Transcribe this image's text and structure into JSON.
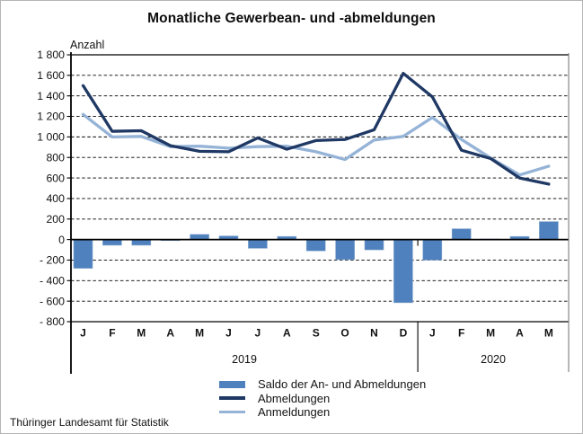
{
  "title": "Monatliche Gewerbean- und -abmeldungen",
  "y_axis_unit": "Anzahl",
  "footer": "Thüringer Landesamt für Statistik",
  "colors": {
    "bar_fill": "#4E81BD",
    "bar_edge": "#86A8D0",
    "line_dark": "#1F3864",
    "line_light": "#95B3D7",
    "axis": "#000000",
    "frame_right": "#7f7f7f",
    "text": "#111111"
  },
  "legend": [
    {
      "swatch": "bar-swatch",
      "label": "Saldo der An- und Abmeldungen"
    },
    {
      "swatch": "dark-line-swatch",
      "label": "Abmeldungen"
    },
    {
      "swatch": "light-line-swatch",
      "label": "Anmeldungen"
    }
  ],
  "chart_data": {
    "type": "bar+line combo",
    "title": "Monatliche Gewerbean- und -abmeldungen",
    "ylabel": "Anzahl",
    "ylim": [
      -800,
      1800
    ],
    "ytick_step": 200,
    "grid": "dashed horizontal",
    "legend_position": "bottom",
    "y_tick_labels": [
      "1 800",
      "1 600",
      "1 400",
      "1 200",
      "1 000",
      "800",
      "600",
      "400",
      "200",
      "0",
      "- 200",
      "- 400",
      "- 600",
      "- 800"
    ],
    "categories": [
      "J",
      "F",
      "M",
      "A",
      "M",
      "J",
      "J",
      "A",
      "S",
      "O",
      "N",
      "D",
      "J",
      "F",
      "M",
      "A",
      "M"
    ],
    "year_groups": [
      {
        "label": "2019",
        "from_index": 0,
        "to_index": 11
      },
      {
        "label": "2020",
        "from_index": 12,
        "to_index": 16
      }
    ],
    "series": [
      {
        "name": "Saldo der An- und Abmeldungen",
        "type": "bar",
        "color_key": "bar_fill",
        "values": [
          -280,
          -55,
          -55,
          -10,
          50,
          35,
          -85,
          30,
          -110,
          -195,
          -100,
          -615,
          -200,
          105,
          5,
          30,
          175
        ]
      },
      {
        "name": "Abmeldungen",
        "type": "line",
        "color_key": "line_dark",
        "values": [
          1500,
          1055,
          1060,
          915,
          860,
          855,
          990,
          880,
          965,
          975,
          1070,
          1620,
          1390,
          870,
          790,
          600,
          540
        ]
      },
      {
        "name": "Anmeldungen",
        "type": "line",
        "color_key": "line_light",
        "values": [
          1220,
          1000,
          1005,
          905,
          910,
          890,
          905,
          910,
          855,
          780,
          970,
          1005,
          1190,
          975,
          795,
          630,
          715
        ]
      }
    ]
  }
}
